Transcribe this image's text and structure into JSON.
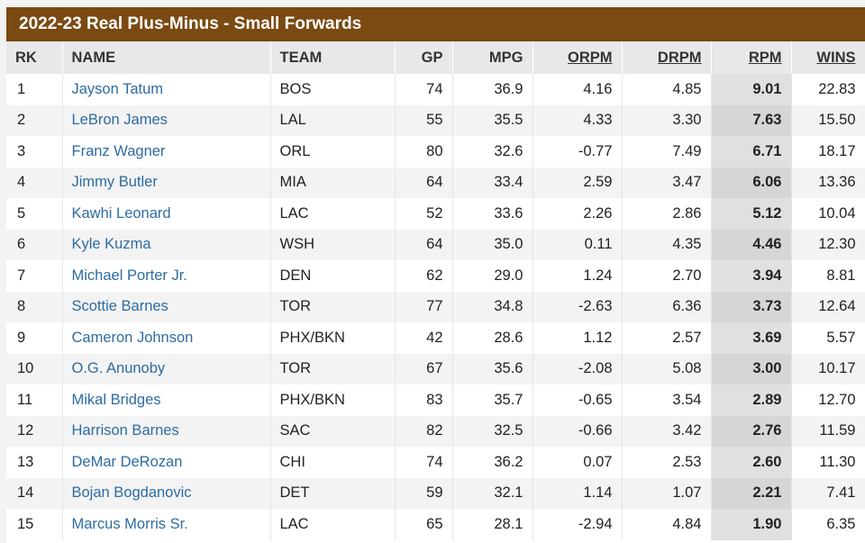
{
  "title": "2022-23 Real Plus-Minus - Small Forwards",
  "columns": {
    "rk": "RK",
    "name": "NAME",
    "team": "TEAM",
    "gp": "GP",
    "mpg": "MPG",
    "orpm": "ORPM",
    "drpm": "DRPM",
    "rpm": "RPM",
    "wins": "WINS"
  },
  "rows": [
    {
      "rk": "1",
      "name": "Jayson Tatum",
      "team": "BOS",
      "gp": "74",
      "mpg": "36.9",
      "orpm": "4.16",
      "drpm": "4.85",
      "rpm": "9.01",
      "wins": "22.83"
    },
    {
      "rk": "2",
      "name": "LeBron James",
      "team": "LAL",
      "gp": "55",
      "mpg": "35.5",
      "orpm": "4.33",
      "drpm": "3.30",
      "rpm": "7.63",
      "wins": "15.50"
    },
    {
      "rk": "3",
      "name": "Franz Wagner",
      "team": "ORL",
      "gp": "80",
      "mpg": "32.6",
      "orpm": "-0.77",
      "drpm": "7.49",
      "rpm": "6.71",
      "wins": "18.17"
    },
    {
      "rk": "4",
      "name": "Jimmy Butler",
      "team": "MIA",
      "gp": "64",
      "mpg": "33.4",
      "orpm": "2.59",
      "drpm": "3.47",
      "rpm": "6.06",
      "wins": "13.36"
    },
    {
      "rk": "5",
      "name": "Kawhi Leonard",
      "team": "LAC",
      "gp": "52",
      "mpg": "33.6",
      "orpm": "2.26",
      "drpm": "2.86",
      "rpm": "5.12",
      "wins": "10.04"
    },
    {
      "rk": "6",
      "name": "Kyle Kuzma",
      "team": "WSH",
      "gp": "64",
      "mpg": "35.0",
      "orpm": "0.11",
      "drpm": "4.35",
      "rpm": "4.46",
      "wins": "12.30"
    },
    {
      "rk": "7",
      "name": "Michael Porter Jr.",
      "team": "DEN",
      "gp": "62",
      "mpg": "29.0",
      "orpm": "1.24",
      "drpm": "2.70",
      "rpm": "3.94",
      "wins": "8.81"
    },
    {
      "rk": "8",
      "name": "Scottie Barnes",
      "team": "TOR",
      "gp": "77",
      "mpg": "34.8",
      "orpm": "-2.63",
      "drpm": "6.36",
      "rpm": "3.73",
      "wins": "12.64"
    },
    {
      "rk": "9",
      "name": "Cameron Johnson",
      "team": "PHX/BKN",
      "gp": "42",
      "mpg": "28.6",
      "orpm": "1.12",
      "drpm": "2.57",
      "rpm": "3.69",
      "wins": "5.57"
    },
    {
      "rk": "10",
      "name": "O.G. Anunoby",
      "team": "TOR",
      "gp": "67",
      "mpg": "35.6",
      "orpm": "-2.08",
      "drpm": "5.08",
      "rpm": "3.00",
      "wins": "10.17"
    },
    {
      "rk": "11",
      "name": "Mikal Bridges",
      "team": "PHX/BKN",
      "gp": "83",
      "mpg": "35.7",
      "orpm": "-0.65",
      "drpm": "3.54",
      "rpm": "2.89",
      "wins": "12.70"
    },
    {
      "rk": "12",
      "name": "Harrison Barnes",
      "team": "SAC",
      "gp": "82",
      "mpg": "32.5",
      "orpm": "-0.66",
      "drpm": "3.42",
      "rpm": "2.76",
      "wins": "11.59"
    },
    {
      "rk": "13",
      "name": "DeMar DeRozan",
      "team": "CHI",
      "gp": "74",
      "mpg": "36.2",
      "orpm": "0.07",
      "drpm": "2.53",
      "rpm": "2.60",
      "wins": "11.30"
    },
    {
      "rk": "14",
      "name": "Bojan Bogdanovic",
      "team": "DET",
      "gp": "59",
      "mpg": "32.1",
      "orpm": "1.14",
      "drpm": "1.07",
      "rpm": "2.21",
      "wins": "7.41"
    },
    {
      "rk": "15",
      "name": "Marcus Morris Sr.",
      "team": "LAC",
      "gp": "65",
      "mpg": "28.1",
      "orpm": "-2.94",
      "drpm": "4.84",
      "rpm": "1.90",
      "wins": "6.35"
    }
  ]
}
